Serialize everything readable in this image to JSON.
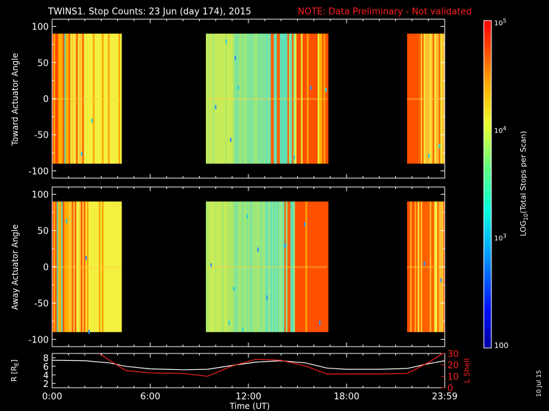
{
  "header": {
    "title": "TWINS1. Stop Counts: 23 Jun (day 174), 2015",
    "note": "NOTE: Data Preliminary - Not validated"
  },
  "footer": {
    "date_stamp": "10 Jul 15"
  },
  "colors": {
    "background": "#000000",
    "axis": "#ffffff",
    "note": "#ff2020",
    "r_line": "#ffffff",
    "lshell_line": "#ff2020"
  },
  "chart_data": [
    {
      "type": "heatmap",
      "panel": "top",
      "ylabel": "Toward Actuator Angle",
      "ylim": [
        -110,
        110
      ],
      "yticks": [
        "-100",
        "-50",
        "0",
        "50",
        "100"
      ],
      "ytick_values": [
        -100,
        -50,
        0,
        50,
        100
      ],
      "y_data_range": [
        -90,
        90
      ],
      "xlim_hours": [
        0,
        24
      ],
      "data_segments_hours": [
        [
          0,
          4.2
        ],
        [
          9.4,
          16.8
        ],
        [
          21.7,
          24
        ]
      ],
      "colorscale": "log",
      "grid": false
    },
    {
      "type": "heatmap",
      "panel": "middle",
      "ylabel": "Away Actuator Angle",
      "ylim": [
        -110,
        110
      ],
      "yticks": [
        "-100",
        "-50",
        "0",
        "50",
        "100"
      ],
      "ytick_values": [
        -100,
        -50,
        0,
        50,
        100
      ],
      "y_data_range": [
        -90,
        90
      ],
      "xlim_hours": [
        0,
        24
      ],
      "data_segments_hours": [
        [
          0,
          4.2
        ],
        [
          9.4,
          16.8
        ],
        [
          21.7,
          24
        ]
      ],
      "colorscale": "log",
      "grid": false
    },
    {
      "type": "line",
      "panel": "bottom",
      "xlabel": "Time (UT)",
      "xticks": [
        "0:00",
        "6:00",
        "12:00",
        "18:00",
        "23:59"
      ],
      "xtick_hours": [
        0,
        6,
        12,
        18,
        24
      ],
      "ylabel": "R [RE]",
      "ylabel_main": "R [R",
      "ylabel_sub": "E",
      "ylabel_end": "]",
      "ylim": [
        1,
        9
      ],
      "yticks": [
        "2",
        "4",
        "6",
        "8"
      ],
      "ytick_values": [
        2,
        4,
        6,
        8
      ],
      "y2label": "L Shell",
      "y2lim": [
        0,
        30
      ],
      "y2ticks": [
        "0",
        "10",
        "20",
        "30"
      ],
      "y2tick_values": [
        0,
        10,
        20,
        30
      ],
      "series": [
        {
          "axis": "left",
          "color": "#ffffff",
          "x": [
            0,
            2,
            3.5,
            4.5,
            6,
            8,
            9.5,
            11,
            12.5,
            14,
            15.5,
            16.8,
            18,
            20,
            21.7,
            23,
            24
          ],
          "y": [
            7.4,
            7.3,
            6.8,
            6.0,
            5.4,
            5.2,
            5.3,
            6.2,
            7.0,
            7.3,
            6.8,
            5.6,
            5.3,
            5.3,
            5.5,
            6.6,
            7.3
          ]
        },
        {
          "axis": "right",
          "color": "#ff2020",
          "x": [
            2.9,
            3.5,
            4.5,
            6,
            8,
            9.5,
            11,
            12.5,
            14,
            15.5,
            16.8,
            18,
            20,
            21.7,
            23,
            24
          ],
          "y": [
            30,
            24,
            15,
            13,
            12.5,
            10,
            19,
            25,
            24,
            19,
            12,
            12,
            12,
            12.5,
            22,
            31
          ]
        }
      ]
    }
  ],
  "colorbar": {
    "label_main": "LOG",
    "label_sub": "10",
    "label_rest": "(Total Stops per Scan)",
    "tick_top_base": "10",
    "tick_top_exp": "5",
    "tick_4_base": "10",
    "tick_4_exp": "4",
    "tick_3_base": "10",
    "tick_3_exp": "3",
    "tick_bottom": "100",
    "tick_values": [
      100,
      1000,
      10000,
      100000
    ]
  }
}
